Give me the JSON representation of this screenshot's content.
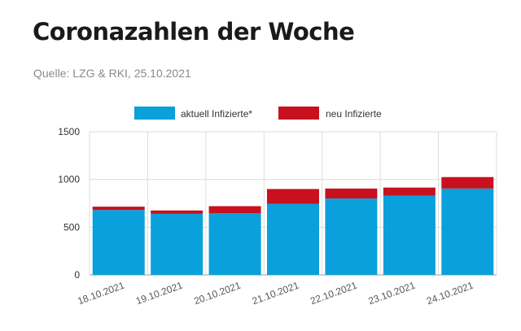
{
  "header": {
    "title": "Coronazahlen der Woche",
    "source": "Quelle: LZG & RKI, 25.10.2021"
  },
  "chart_data": {
    "type": "bar",
    "stacked": true,
    "categories": [
      "18.10.2021",
      "19.10.2021",
      "20.10.2021",
      "21.10.2021",
      "22.10.2021",
      "23.10.2021",
      "24.10.2021"
    ],
    "series": [
      {
        "name": "aktuell Infizierte*",
        "color": "#0aa0dc",
        "values": [
          680,
          640,
          645,
          745,
          800,
          830,
          905
        ]
      },
      {
        "name": "neu Infizierte",
        "color": "#c8101e",
        "values": [
          35,
          35,
          75,
          155,
          105,
          85,
          120
        ]
      }
    ],
    "ylim": [
      0,
      1500
    ],
    "yticks": [
      0,
      500,
      1000,
      1500
    ],
    "grid": true,
    "legend": "top"
  }
}
